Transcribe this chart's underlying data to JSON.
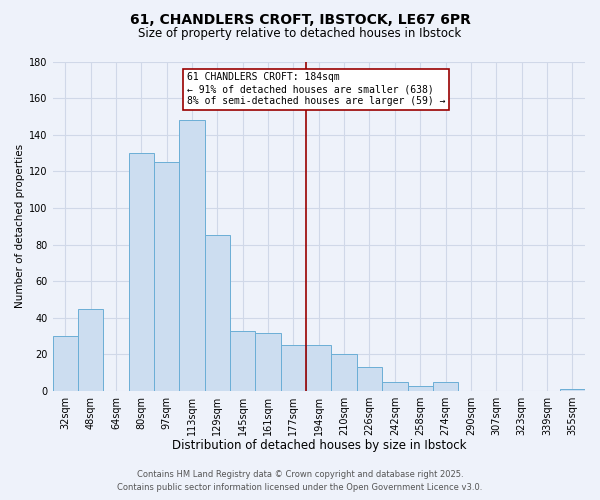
{
  "title": "61, CHANDLERS CROFT, IBSTOCK, LE67 6PR",
  "subtitle": "Size of property relative to detached houses in Ibstock",
  "xlabel": "Distribution of detached houses by size in Ibstock",
  "ylabel": "Number of detached properties",
  "bar_labels": [
    "32sqm",
    "48sqm",
    "64sqm",
    "80sqm",
    "97sqm",
    "113sqm",
    "129sqm",
    "145sqm",
    "161sqm",
    "177sqm",
    "194sqm",
    "210sqm",
    "226sqm",
    "242sqm",
    "258sqm",
    "274sqm",
    "290sqm",
    "307sqm",
    "323sqm",
    "339sqm",
    "355sqm"
  ],
  "bar_values": [
    30,
    45,
    0,
    130,
    125,
    148,
    85,
    33,
    32,
    25,
    25,
    20,
    13,
    5,
    3,
    5,
    0,
    0,
    0,
    0,
    1
  ],
  "bar_color": "#ccddf0",
  "bar_edge_color": "#6baed6",
  "vline_pos": 9.5,
  "vline_color": "#990000",
  "annotation_title": "61 CHANDLERS CROFT: 184sqm",
  "annotation_line1": "← 91% of detached houses are smaller (638)",
  "annotation_line2": "8% of semi-detached houses are larger (59) →",
  "annotation_box_color": "#ffffff",
  "annotation_border_color": "#990000",
  "ylim": [
    0,
    180
  ],
  "yticks": [
    0,
    20,
    40,
    60,
    80,
    100,
    120,
    140,
    160,
    180
  ],
  "footer_line1": "Contains HM Land Registry data © Crown copyright and database right 2025.",
  "footer_line2": "Contains public sector information licensed under the Open Government Licence v3.0.",
  "background_color": "#eef2fa",
  "grid_color": "#d0d8e8",
  "title_fontsize": 10,
  "subtitle_fontsize": 8.5,
  "xlabel_fontsize": 8.5,
  "ylabel_fontsize": 7.5,
  "tick_fontsize": 7,
  "annot_fontsize": 7,
  "footer_fontsize": 6
}
